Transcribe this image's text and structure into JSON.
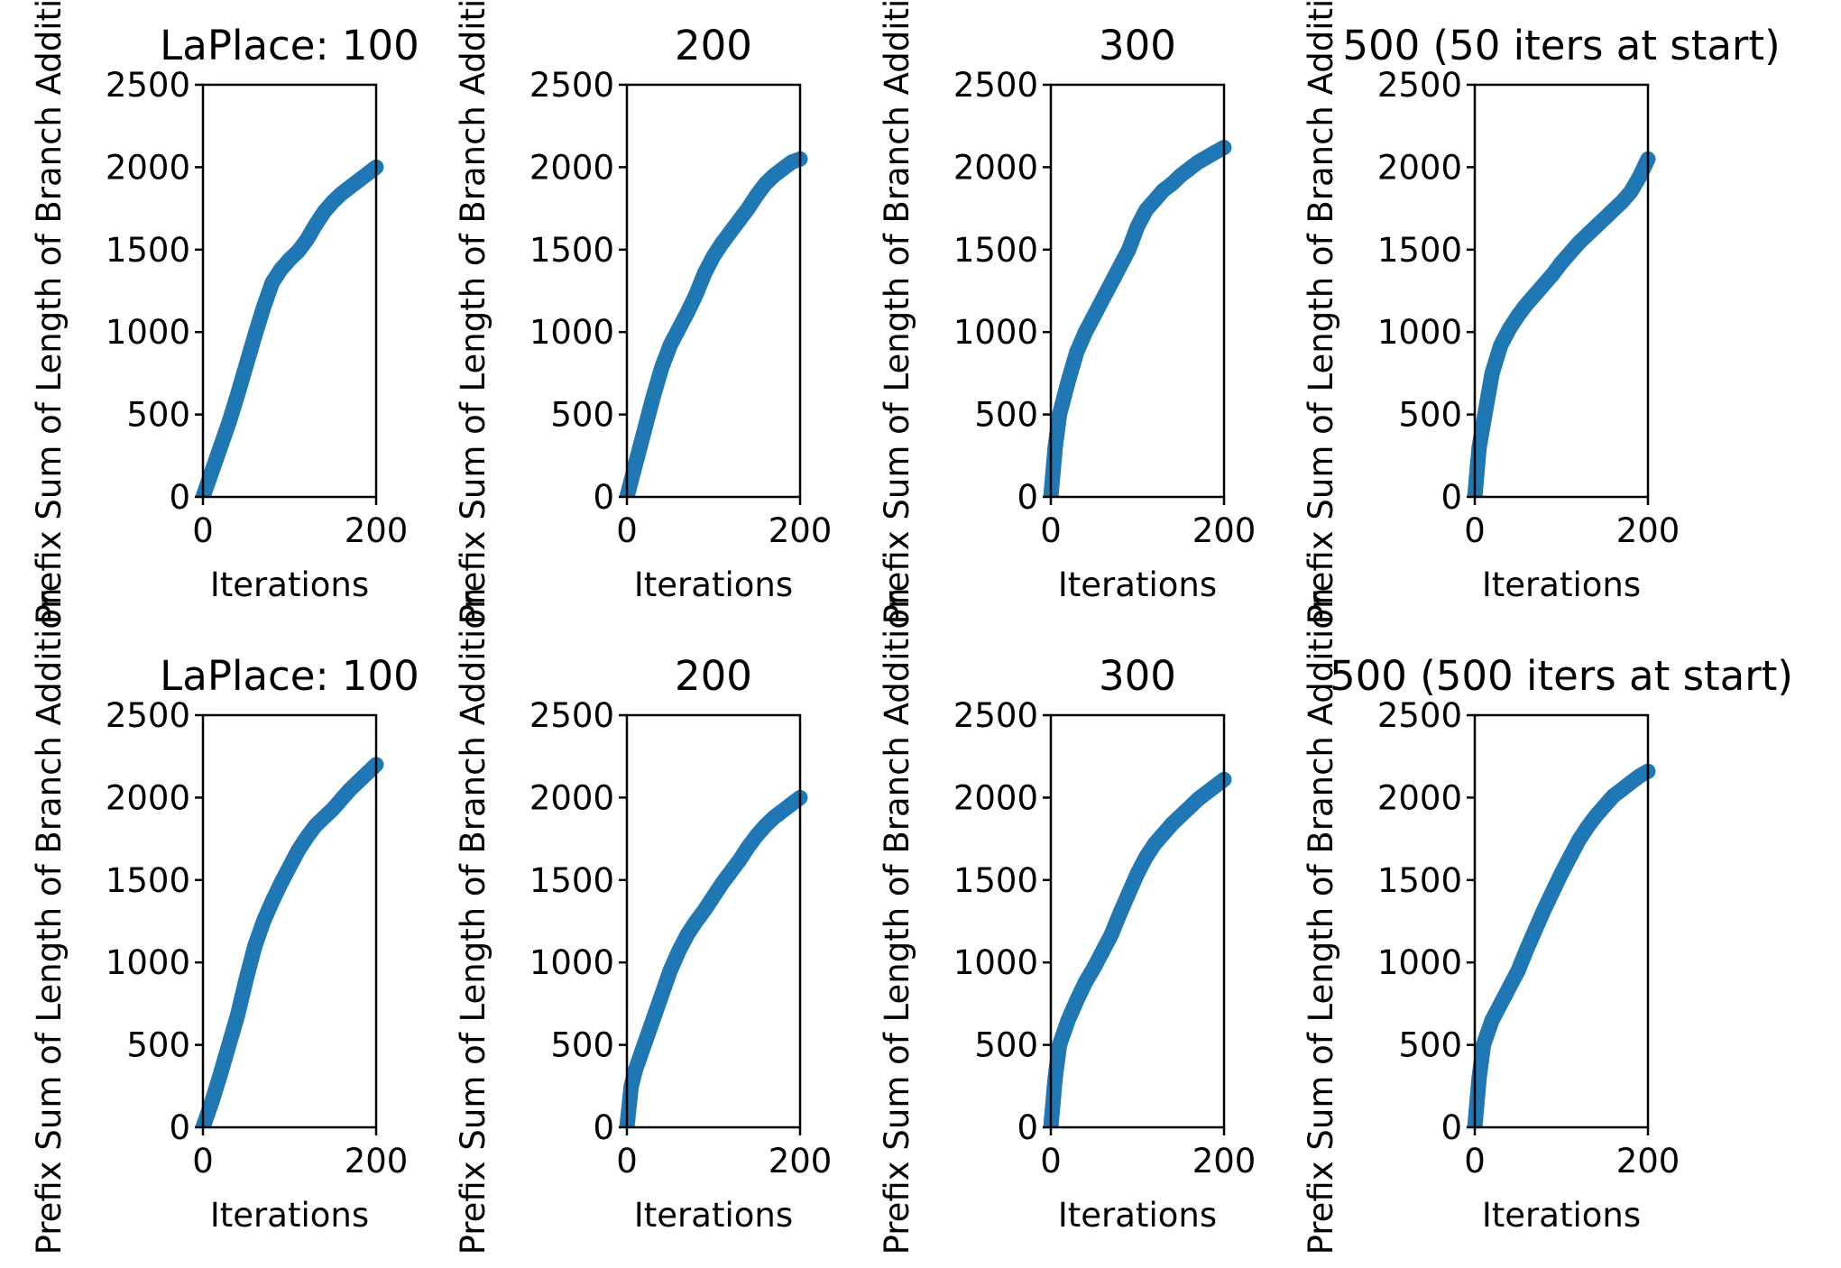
{
  "chart_data": [
    {
      "type": "line",
      "title": "LaPlace: 100",
      "xlabel": "Iterations",
      "ylabel": "Prefix Sum of Length of Branch Addition",
      "xlim": [
        0,
        200
      ],
      "ylim": [
        0,
        2500
      ],
      "xticks": [
        "0",
        "200"
      ],
      "yticks": [
        "0",
        "500",
        "1000",
        "1500",
        "2000",
        "2500"
      ],
      "grid": false,
      "color": "#1f77b4",
      "x": [
        0,
        10,
        20,
        30,
        40,
        50,
        60,
        70,
        80,
        90,
        100,
        110,
        120,
        130,
        140,
        150,
        160,
        170,
        180,
        190,
        200
      ],
      "y": [
        0,
        150,
        300,
        450,
        620,
        800,
        980,
        1150,
        1300,
        1380,
        1440,
        1490,
        1560,
        1650,
        1730,
        1790,
        1840,
        1880,
        1920,
        1960,
        2000
      ]
    },
    {
      "type": "line",
      "title": "200",
      "xlabel": "Iterations",
      "ylabel": "Prefix Sum of Length of Branch Addition",
      "xlim": [
        0,
        200
      ],
      "ylim": [
        0,
        2500
      ],
      "xticks": [
        "0",
        "200"
      ],
      "yticks": [
        "0",
        "500",
        "1000",
        "1500",
        "2000",
        "2500"
      ],
      "grid": false,
      "color": "#1f77b4",
      "x": [
        0,
        10,
        20,
        30,
        40,
        50,
        60,
        70,
        80,
        90,
        100,
        110,
        120,
        130,
        140,
        150,
        160,
        170,
        180,
        190,
        200
      ],
      "y": [
        0,
        200,
        400,
        600,
        780,
        920,
        1020,
        1120,
        1230,
        1360,
        1460,
        1540,
        1610,
        1680,
        1750,
        1830,
        1900,
        1950,
        1990,
        2030,
        2050
      ]
    },
    {
      "type": "line",
      "title": "300",
      "xlabel": "Iterations",
      "ylabel": "Prefix Sum of Length of Branch Addition",
      "xlim": [
        0,
        200
      ],
      "ylim": [
        0,
        2500
      ],
      "xticks": [
        "0",
        "200"
      ],
      "yticks": [
        "0",
        "500",
        "1000",
        "1500",
        "2000",
        "2500"
      ],
      "grid": false,
      "color": "#1f77b4",
      "x": [
        0,
        5,
        10,
        20,
        30,
        40,
        50,
        60,
        70,
        80,
        90,
        100,
        110,
        120,
        130,
        140,
        150,
        160,
        170,
        180,
        190,
        200
      ],
      "y": [
        0,
        300,
        500,
        700,
        880,
        1000,
        1100,
        1200,
        1300,
        1400,
        1500,
        1640,
        1740,
        1800,
        1860,
        1900,
        1950,
        1990,
        2030,
        2060,
        2090,
        2120
      ]
    },
    {
      "type": "line",
      "title": "500 (50 iters at start)",
      "xlabel": "Iterations",
      "ylabel": "Prefix Sum of Length of Branch Addition",
      "xlim": [
        0,
        200
      ],
      "ylim": [
        0,
        2500
      ],
      "xticks": [
        "0",
        "200"
      ],
      "yticks": [
        "0",
        "500",
        "1000",
        "1500",
        "2000",
        "2500"
      ],
      "grid": false,
      "color": "#1f77b4",
      "x": [
        0,
        5,
        10,
        15,
        20,
        30,
        40,
        50,
        60,
        70,
        80,
        90,
        100,
        110,
        120,
        130,
        140,
        150,
        160,
        170,
        180,
        190,
        200
      ],
      "y": [
        0,
        300,
        450,
        600,
        750,
        920,
        1020,
        1100,
        1170,
        1230,
        1290,
        1350,
        1420,
        1480,
        1540,
        1590,
        1640,
        1690,
        1740,
        1790,
        1850,
        1940,
        2050
      ]
    },
    {
      "type": "line",
      "title": "LaPlace: 100",
      "xlabel": "Iterations",
      "ylabel": "Prefix Sum of Length of Branch Addition",
      "xlim": [
        0,
        200
      ],
      "ylim": [
        0,
        2500
      ],
      "xticks": [
        "0",
        "200"
      ],
      "yticks": [
        "0",
        "500",
        "1000",
        "1500",
        "2000",
        "2500"
      ],
      "grid": false,
      "color": "#1f77b4",
      "x": [
        0,
        10,
        20,
        30,
        40,
        50,
        60,
        70,
        80,
        90,
        100,
        110,
        120,
        130,
        140,
        150,
        160,
        170,
        180,
        190,
        200
      ],
      "y": [
        0,
        150,
        320,
        500,
        680,
        900,
        1100,
        1250,
        1370,
        1480,
        1580,
        1680,
        1760,
        1830,
        1880,
        1930,
        1990,
        2050,
        2100,
        2150,
        2200
      ]
    },
    {
      "type": "line",
      "title": "200",
      "xlabel": "Iterations",
      "ylabel": "Prefix Sum of Length of Branch Addition",
      "xlim": [
        0,
        200
      ],
      "ylim": [
        0,
        2500
      ],
      "xticks": [
        "0",
        "200"
      ],
      "yticks": [
        "0",
        "500",
        "1000",
        "1500",
        "2000",
        "2500"
      ],
      "grid": false,
      "color": "#1f77b4",
      "x": [
        0,
        5,
        10,
        20,
        30,
        40,
        50,
        60,
        70,
        80,
        90,
        100,
        110,
        120,
        130,
        140,
        150,
        160,
        170,
        180,
        190,
        200
      ],
      "y": [
        0,
        250,
        350,
        500,
        650,
        800,
        950,
        1070,
        1170,
        1250,
        1320,
        1400,
        1480,
        1550,
        1620,
        1700,
        1770,
        1830,
        1880,
        1920,
        1960,
        2000
      ]
    },
    {
      "type": "line",
      "title": "300",
      "xlabel": "Iterations",
      "ylabel": "Prefix Sum of Length of Branch Addition",
      "xlim": [
        0,
        200
      ],
      "ylim": [
        0,
        2500
      ],
      "xticks": [
        "0",
        "200"
      ],
      "yticks": [
        "0",
        "500",
        "1000",
        "1500",
        "2000",
        "2500"
      ],
      "grid": false,
      "color": "#1f77b4",
      "x": [
        0,
        5,
        10,
        20,
        30,
        40,
        50,
        60,
        70,
        80,
        90,
        100,
        110,
        120,
        130,
        140,
        150,
        160,
        170,
        180,
        190,
        200
      ],
      "y": [
        0,
        300,
        500,
        650,
        770,
        880,
        970,
        1070,
        1170,
        1300,
        1420,
        1540,
        1640,
        1720,
        1780,
        1840,
        1890,
        1940,
        1990,
        2030,
        2070,
        2110
      ]
    },
    {
      "type": "line",
      "title": "500 (500 iters at start)",
      "xlabel": "Iterations",
      "ylabel": "Prefix Sum of Length of Branch Addition",
      "xlim": [
        0,
        200
      ],
      "ylim": [
        0,
        2500
      ],
      "xticks": [
        "0",
        "200"
      ],
      "yticks": [
        "0",
        "500",
        "1000",
        "1500",
        "2000",
        "2500"
      ],
      "grid": false,
      "color": "#1f77b4",
      "x": [
        0,
        5,
        10,
        20,
        30,
        40,
        50,
        60,
        70,
        80,
        90,
        100,
        110,
        120,
        130,
        140,
        150,
        160,
        170,
        180,
        190,
        200
      ],
      "y": [
        0,
        300,
        500,
        650,
        750,
        850,
        950,
        1080,
        1200,
        1320,
        1430,
        1540,
        1640,
        1740,
        1820,
        1890,
        1950,
        2010,
        2050,
        2090,
        2130,
        2160
      ]
    }
  ]
}
